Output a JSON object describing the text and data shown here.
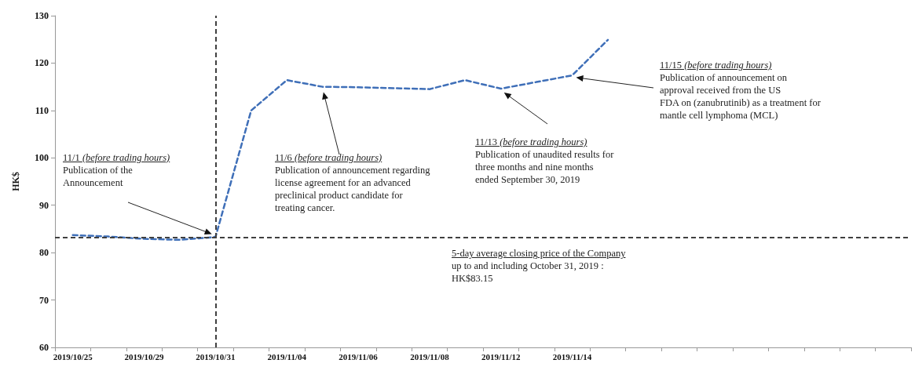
{
  "chart_data": {
    "type": "line",
    "ylabel": "HK$",
    "categories": [
      "2019/10/25",
      null,
      "2019/10/29",
      null,
      "2019/10/31",
      null,
      "2019/11/04",
      null,
      "2019/11/06",
      null,
      "2019/11/08",
      null,
      "2019/11/12",
      null,
      "2019/11/14",
      null,
      null,
      null,
      null,
      null,
      null,
      null,
      null,
      null
    ],
    "values": [
      83.7,
      83.4,
      82.9,
      82.7,
      83.3,
      110,
      116.4,
      115,
      114.9,
      114.7,
      114.5,
      116.4,
      114.6,
      116,
      117.4,
      124.9,
      null,
      null,
      null,
      null,
      null,
      null,
      null,
      null
    ],
    "color": "#3f6fb8",
    "line_style": "dashed",
    "marker": "none",
    "ylim": [
      60,
      130
    ],
    "yticks": [
      60,
      70,
      80,
      90,
      100,
      110,
      120,
      130
    ],
    "grid": false,
    "ref_lines": [
      {
        "axis": "y",
        "value": 83.15,
        "label": "5-day average closing price of the Company\nup to and including October 31, 2019 :\nHK$83.15",
        "color": "#404040",
        "line_style": "dashed"
      },
      {
        "axis": "x",
        "value": "2019/10/31",
        "color": "#404040",
        "line_style": "dashed"
      }
    ],
    "annotations": [
      "11/1 (before trading hours)\nPublication of the\nAnnouncement",
      "11/6 (before trading hours)\nPublication of announcement regarding\nlicense agreement for an advanced\npreclinical product candidate for\ntreating cancer.",
      "11/13 (before trading hours)\nPublication of unaudited results for\nthree months and nine months\nended September 30, 2019",
      "11/15 (before trading hours)\nPublication of announcement on\napproval received from the US\nFDA on (zanubrutinib) as a treatment for\nmantle cell lymphoma (MCL)"
    ]
  }
}
